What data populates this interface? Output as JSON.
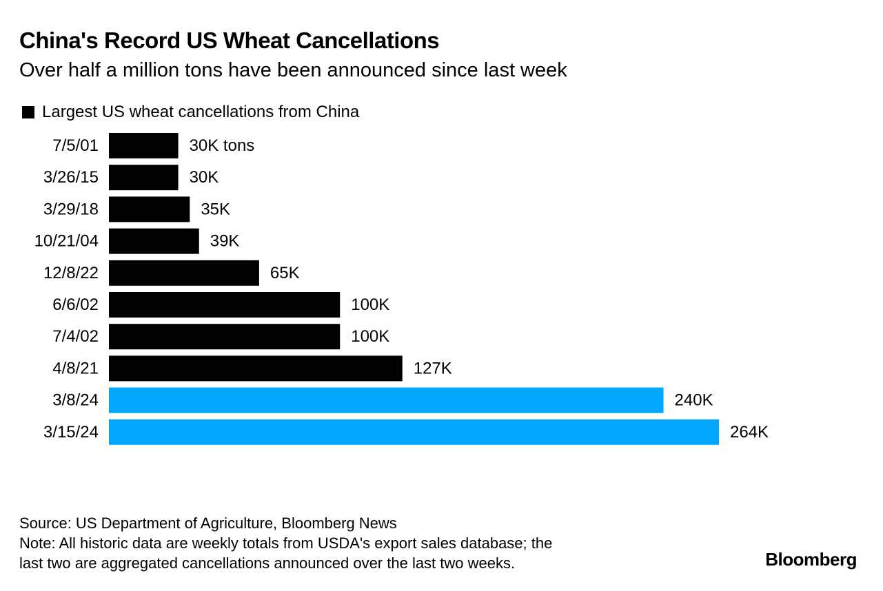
{
  "header": {
    "title": "China's Record US Wheat Cancellations",
    "subtitle": "Over half a million tons have been announced since last week"
  },
  "legend": {
    "label": "Largest US wheat cancellations from China",
    "color": "#000000"
  },
  "colors": {
    "historic": "#000000",
    "recent": "#00a6ff"
  },
  "chart_data": {
    "type": "bar",
    "orientation": "horizontal",
    "categories": [
      "7/5/01",
      "3/26/15",
      "3/29/18",
      "10/21/04",
      "12/8/22",
      "6/6/02",
      "7/4/02",
      "4/8/21",
      "3/8/24",
      "3/15/24"
    ],
    "values": [
      30,
      30,
      35,
      39,
      65,
      100,
      100,
      127,
      240,
      264
    ],
    "value_labels": [
      "30K tons",
      "30K",
      "35K",
      "39K",
      "65K",
      "100K",
      "100K",
      "127K",
      "240K",
      "264K"
    ],
    "highlight": [
      false,
      false,
      false,
      false,
      false,
      false,
      false,
      false,
      true,
      true
    ],
    "series": [
      {
        "name": "Largest US wheat cancellations from China",
        "values": [
          30,
          30,
          35,
          39,
          65,
          100,
          100,
          127,
          240,
          264
        ]
      }
    ],
    "title": "China's Record US Wheat Cancellations",
    "subtitle": "Over half a million tons have been announced since last week",
    "xlim": [
      0,
      264
    ],
    "grid": false,
    "legend_position": "top-left"
  },
  "footer": {
    "source": "Source: US Department of Agriculture, Bloomberg News",
    "note_line1": "Note: All historic data are weekly totals from USDA's export sales database; the",
    "note_line2": "last two are aggregated cancellations announced over the last two weeks."
  },
  "brand": "Bloomberg"
}
